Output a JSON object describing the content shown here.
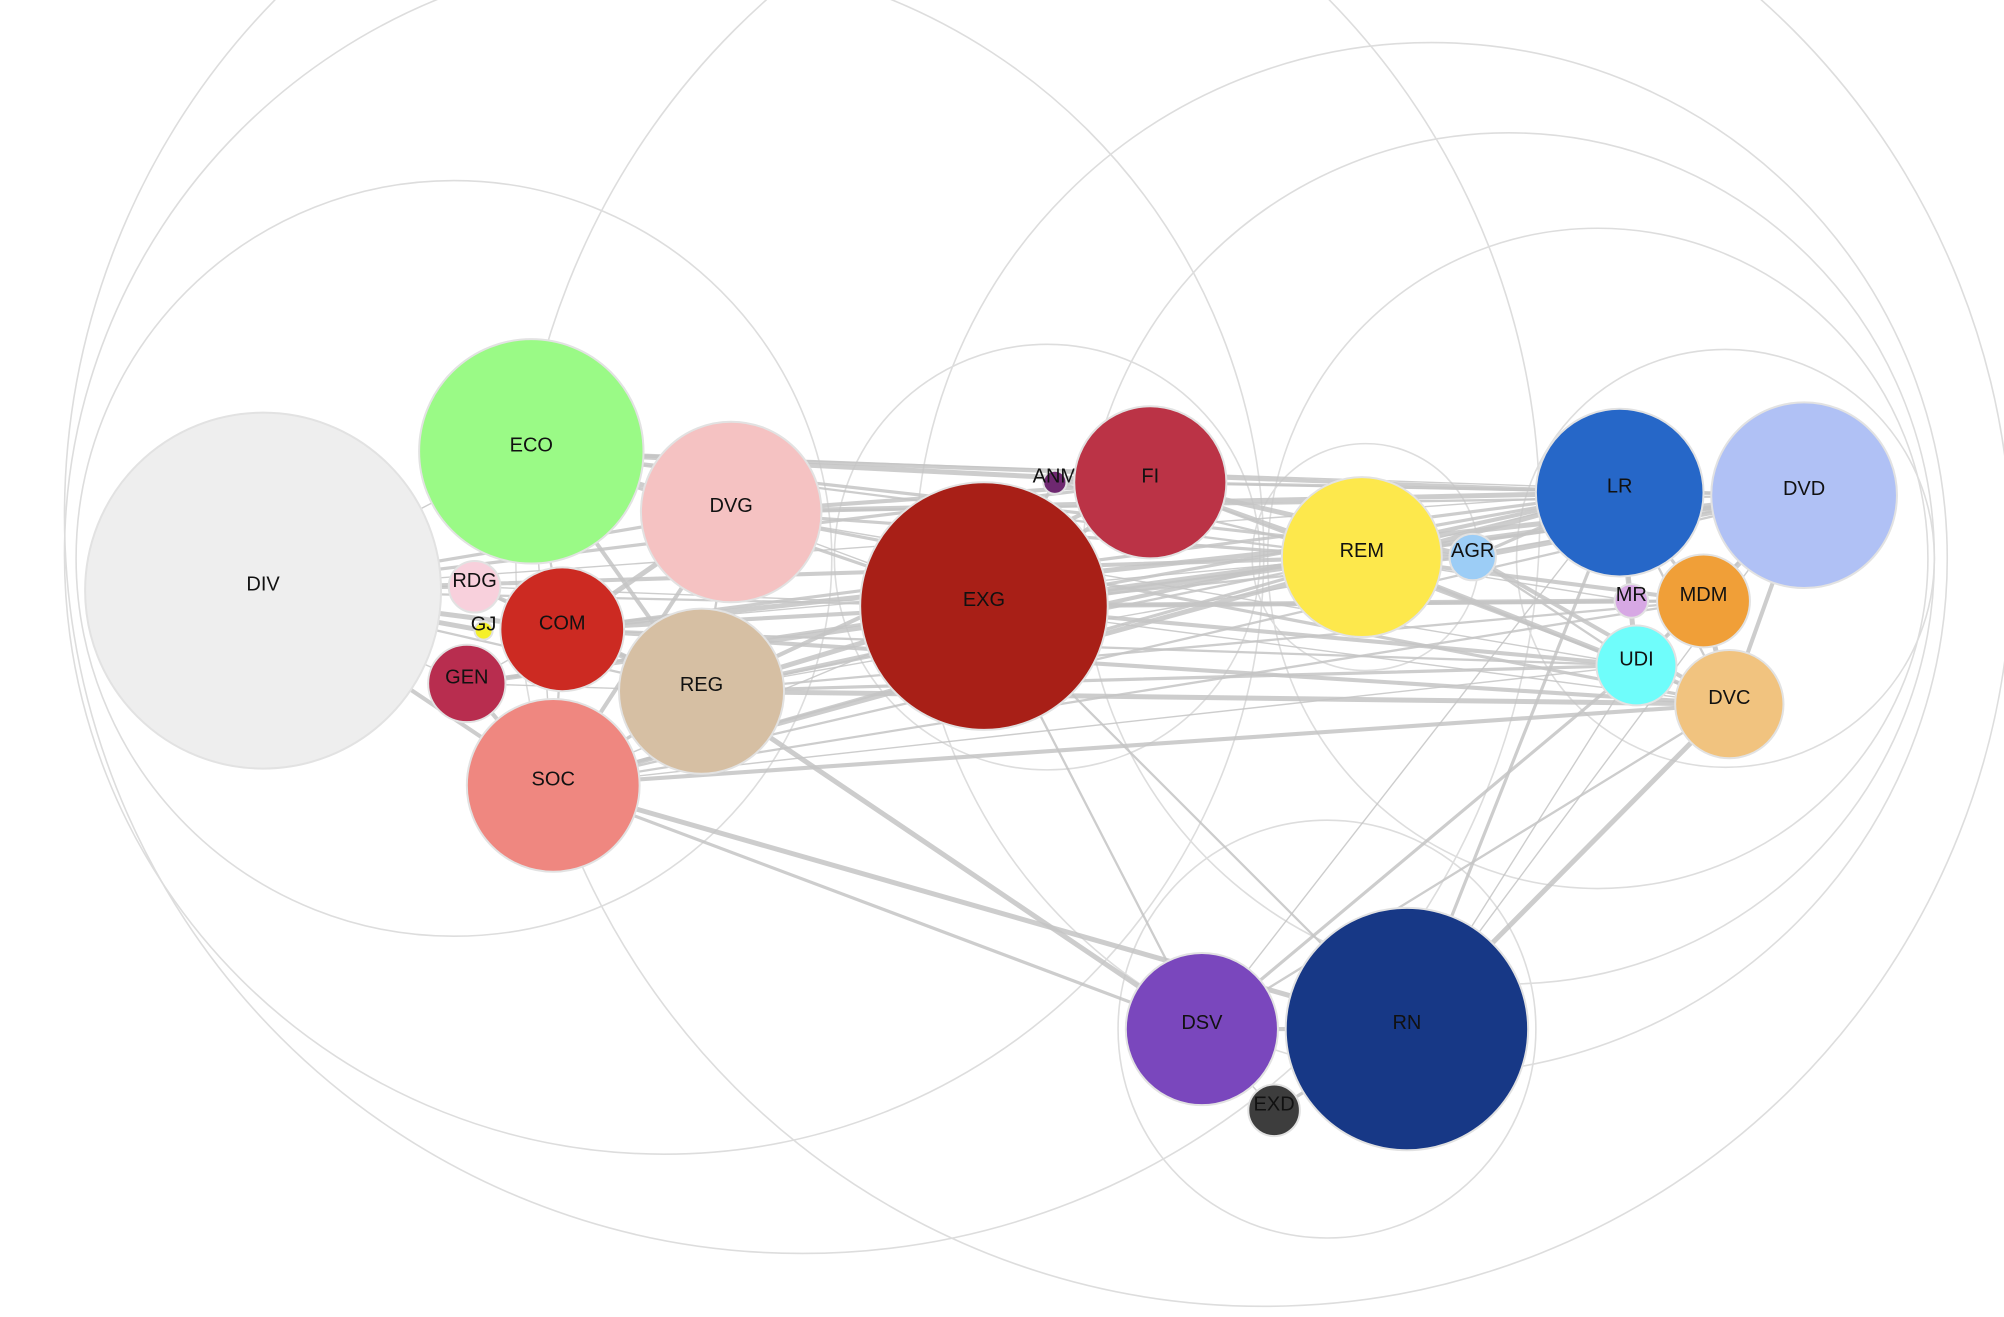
{
  "diagram": {
    "type": "network-bubble-graph",
    "colors": {
      "edge": "#c4c4c4",
      "ring": "#dddddd",
      "label": "#111111"
    },
    "nodes": [
      {
        "id": "DIV",
        "label": "DIV",
        "color": "#eeeeee"
      },
      {
        "id": "ECO",
        "label": "ECO",
        "color": "#9afa86"
      },
      {
        "id": "DVG",
        "label": "DVG",
        "color": "#f5c2c2"
      },
      {
        "id": "RDG",
        "label": "RDG",
        "color": "#f8d0dc"
      },
      {
        "id": "GJ",
        "label": "GJ",
        "color": "#f5f02a"
      },
      {
        "id": "COM",
        "label": "COM",
        "color": "#cc2a22"
      },
      {
        "id": "GEN",
        "label": "GEN",
        "color": "#b82d4f"
      },
      {
        "id": "REG",
        "label": "REG",
        "color": "#d6bfa3"
      },
      {
        "id": "SOC",
        "label": "SOC",
        "color": "#ef8780"
      },
      {
        "id": "ANM",
        "label": "ANM",
        "color": "#6e2870"
      },
      {
        "id": "FI",
        "label": "FI",
        "color": "#bb3346"
      },
      {
        "id": "EXG",
        "label": "EXG",
        "color": "#a81f17"
      },
      {
        "id": "REM",
        "label": "REM",
        "color": "#fde84c"
      },
      {
        "id": "AGR",
        "label": "AGR",
        "color": "#9ccdf6"
      },
      {
        "id": "LR",
        "label": "LR",
        "color": "#2667c8"
      },
      {
        "id": "DVD",
        "label": "DVD",
        "color": "#b0c1f5"
      },
      {
        "id": "MR",
        "label": "MR",
        "color": "#d7a8e4"
      },
      {
        "id": "MDM",
        "label": "MDM",
        "color": "#f09f38"
      },
      {
        "id": "UDI",
        "label": "UDI",
        "color": "#6ffdfb"
      },
      {
        "id": "DVC",
        "label": "DVC",
        "color": "#f1c37f"
      },
      {
        "id": "DSV",
        "label": "DSV",
        "color": "#7a47bd"
      },
      {
        "id": "RN",
        "label": "RN",
        "color": "#173886"
      },
      {
        "id": "EXD",
        "label": "EXD",
        "color": "#3d3d3d"
      }
    ],
    "edges": [
      [
        "DIV",
        "ECO"
      ],
      [
        "DIV",
        "DVG"
      ],
      [
        "DIV",
        "COM"
      ],
      [
        "DIV",
        "REG"
      ],
      [
        "DIV",
        "SOC"
      ],
      [
        "DIV",
        "GEN"
      ],
      [
        "DIV",
        "RDG"
      ],
      [
        "DIV",
        "GJ"
      ],
      [
        "DIV",
        "EXG"
      ],
      [
        "DIV",
        "REM"
      ],
      [
        "DIV",
        "LR"
      ],
      [
        "DIV",
        "FI"
      ],
      [
        "ECO",
        "DVG"
      ],
      [
        "ECO",
        "COM"
      ],
      [
        "ECO",
        "REG"
      ],
      [
        "ECO",
        "SOC"
      ],
      [
        "ECO",
        "EXG"
      ],
      [
        "ECO",
        "FI"
      ],
      [
        "ECO",
        "REM"
      ],
      [
        "ECO",
        "LR"
      ],
      [
        "ECO",
        "DVD"
      ],
      [
        "ECO",
        "AGR"
      ],
      [
        "DVG",
        "COM"
      ],
      [
        "DVG",
        "REG"
      ],
      [
        "DVG",
        "SOC"
      ],
      [
        "DVG",
        "EXG"
      ],
      [
        "DVG",
        "REM"
      ],
      [
        "DVG",
        "LR"
      ],
      [
        "DVG",
        "DVD"
      ],
      [
        "DVG",
        "FI"
      ],
      [
        "DVG",
        "UDI"
      ],
      [
        "DVG",
        "DVC"
      ],
      [
        "COM",
        "REG"
      ],
      [
        "COM",
        "SOC"
      ],
      [
        "COM",
        "EXG"
      ],
      [
        "COM",
        "REM"
      ],
      [
        "COM",
        "LR"
      ],
      [
        "COM",
        "DVD"
      ],
      [
        "COM",
        "UDI"
      ],
      [
        "COM",
        "DVC"
      ],
      [
        "COM",
        "GEN"
      ],
      [
        "REG",
        "SOC"
      ],
      [
        "REG",
        "EXG"
      ],
      [
        "REG",
        "REM"
      ],
      [
        "REG",
        "LR"
      ],
      [
        "REG",
        "DVD"
      ],
      [
        "REG",
        "UDI"
      ],
      [
        "REG",
        "DVC"
      ],
      [
        "REG",
        "MDM"
      ],
      [
        "REG",
        "FI"
      ],
      [
        "SOC",
        "EXG"
      ],
      [
        "SOC",
        "REM"
      ],
      [
        "SOC",
        "LR"
      ],
      [
        "SOC",
        "DVD"
      ],
      [
        "SOC",
        "DVC"
      ],
      [
        "SOC",
        "UDI"
      ],
      [
        "SOC",
        "DSV"
      ],
      [
        "SOC",
        "RN"
      ],
      [
        "SOC",
        "MDM"
      ],
      [
        "GEN",
        "SOC"
      ],
      [
        "GEN",
        "REG"
      ],
      [
        "GEN",
        "EXG"
      ],
      [
        "GEN",
        "REM"
      ],
      [
        "RDG",
        "COM"
      ],
      [
        "RDG",
        "REG"
      ],
      [
        "RDG",
        "EXG"
      ],
      [
        "ANM",
        "EXG"
      ],
      [
        "ANM",
        "FI"
      ],
      [
        "ANM",
        "REM"
      ],
      [
        "EXG",
        "FI"
      ],
      [
        "EXG",
        "REM"
      ],
      [
        "EXG",
        "LR"
      ],
      [
        "EXG",
        "DVD"
      ],
      [
        "EXG",
        "AGR"
      ],
      [
        "EXG",
        "UDI"
      ],
      [
        "EXG",
        "DVC"
      ],
      [
        "EXG",
        "MDM"
      ],
      [
        "EXG",
        "MR"
      ],
      [
        "EXG",
        "DSV"
      ],
      [
        "FI",
        "REM"
      ],
      [
        "FI",
        "LR"
      ],
      [
        "FI",
        "DVD"
      ],
      [
        "FI",
        "AGR"
      ],
      [
        "FI",
        "UDI"
      ],
      [
        "REM",
        "AGR"
      ],
      [
        "REM",
        "LR"
      ],
      [
        "REM",
        "DVD"
      ],
      [
        "REM",
        "UDI"
      ],
      [
        "REM",
        "DVC"
      ],
      [
        "REM",
        "MDM"
      ],
      [
        "REM",
        "MR"
      ],
      [
        "AGR",
        "LR"
      ],
      [
        "AGR",
        "DVD"
      ],
      [
        "AGR",
        "UDI"
      ],
      [
        "AGR",
        "DVC"
      ],
      [
        "LR",
        "DVD"
      ],
      [
        "LR",
        "MDM"
      ],
      [
        "LR",
        "UDI"
      ],
      [
        "LR",
        "DVC"
      ],
      [
        "LR",
        "MR"
      ],
      [
        "LR",
        "DSV"
      ],
      [
        "LR",
        "RN"
      ],
      [
        "DVD",
        "MDM"
      ],
      [
        "DVD",
        "UDI"
      ],
      [
        "DVD",
        "DVC"
      ],
      [
        "DVD",
        "RN"
      ],
      [
        "MDM",
        "UDI"
      ],
      [
        "MDM",
        "DVC"
      ],
      [
        "MDM",
        "MR"
      ],
      [
        "UDI",
        "DVC"
      ],
      [
        "UDI",
        "RN"
      ],
      [
        "UDI",
        "DSV"
      ],
      [
        "DVC",
        "RN"
      ],
      [
        "DVC",
        "DSV"
      ],
      [
        "DSV",
        "RN"
      ],
      [
        "DSV",
        "EXD"
      ],
      [
        "RN",
        "EXD"
      ],
      [
        "REG",
        "DSV"
      ],
      [
        "EXG",
        "RN"
      ]
    ]
  }
}
